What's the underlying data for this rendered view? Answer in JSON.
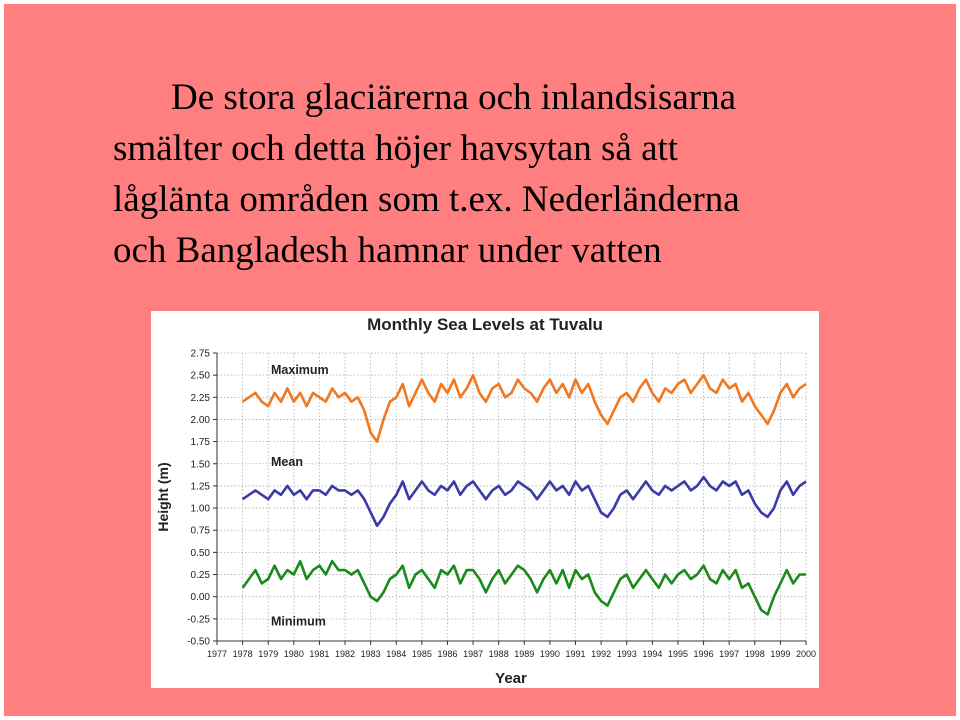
{
  "slide": {
    "text_lines": [
      "De stora glaciärerna och inlandsisarna",
      "smälter och detta höjer havsytan så att",
      "låglänta områden som t.ex. Nederländerna",
      "och Bangladesh hamnar under vatten"
    ]
  },
  "colors": {
    "slide_background": "#ff7f80",
    "maximum": "#f07820",
    "mean": "#3a3aa8",
    "minimum": "#1a8a1a",
    "grid": "#b0b0b0"
  },
  "chart_data": {
    "type": "line",
    "title": "Monthly Sea Levels at Tuvalu",
    "xlabel": "Year",
    "ylabel": "Height (m)",
    "xlim": [
      1977,
      2000
    ],
    "ylim": [
      -0.5,
      2.75
    ],
    "x_ticks": [
      "1977",
      "1978",
      "1979",
      "1980",
      "1981",
      "1982",
      "1983",
      "1984",
      "1985",
      "1986",
      "1987",
      "1988",
      "1989",
      "1990",
      "1991",
      "1992",
      "1993",
      "1994",
      "1995",
      "1996",
      "1997",
      "1998",
      "1999",
      "2000"
    ],
    "y_ticks": [
      "-0.50",
      "-0.25",
      "0.00",
      "0.25",
      "0.50",
      "0.75",
      "1.00",
      "1.25",
      "1.50",
      "1.75",
      "2.00",
      "2.25",
      "2.50",
      "2.75"
    ],
    "grid": true,
    "annotations": [
      "Maximum",
      "Mean",
      "Minimum"
    ],
    "series": [
      {
        "name": "Maximum",
        "x": [
          1978.0,
          1978.25,
          1978.5,
          1978.75,
          1979.0,
          1979.25,
          1979.5,
          1979.75,
          1980.0,
          1980.25,
          1980.5,
          1980.75,
          1981.0,
          1981.25,
          1981.5,
          1981.75,
          1982.0,
          1982.25,
          1982.5,
          1982.75,
          1983.0,
          1983.25,
          1983.5,
          1983.75,
          1984.0,
          1984.25,
          1984.5,
          1984.75,
          1985.0,
          1985.25,
          1985.5,
          1985.75,
          1986.0,
          1986.25,
          1986.5,
          1986.75,
          1987.0,
          1987.25,
          1987.5,
          1987.75,
          1988.0,
          1988.25,
          1988.5,
          1988.75,
          1989.0,
          1989.25,
          1989.5,
          1989.75,
          1990.0,
          1990.25,
          1990.5,
          1990.75,
          1991.0,
          1991.25,
          1991.5,
          1991.75,
          1992.0,
          1992.25,
          1992.5,
          1992.75,
          1993.0,
          1993.25,
          1993.5,
          1993.75,
          1994.0,
          1994.25,
          1994.5,
          1994.75,
          1995.0,
          1995.25,
          1995.5,
          1995.75,
          1996.0,
          1996.25,
          1996.5,
          1996.75,
          1997.0,
          1997.25,
          1997.5,
          1997.75,
          1998.0,
          1998.25,
          1998.5,
          1998.75,
          1999.0,
          1999.25,
          1999.5,
          1999.75,
          2000.0
        ],
        "values": [
          2.2,
          2.25,
          2.3,
          2.2,
          2.15,
          2.3,
          2.2,
          2.35,
          2.2,
          2.3,
          2.15,
          2.3,
          2.25,
          2.2,
          2.35,
          2.25,
          2.3,
          2.2,
          2.25,
          2.1,
          1.85,
          1.75,
          2.0,
          2.2,
          2.25,
          2.4,
          2.15,
          2.3,
          2.45,
          2.3,
          2.2,
          2.4,
          2.3,
          2.45,
          2.25,
          2.35,
          2.5,
          2.3,
          2.2,
          2.35,
          2.4,
          2.25,
          2.3,
          2.45,
          2.35,
          2.3,
          2.2,
          2.35,
          2.45,
          2.3,
          2.4,
          2.25,
          2.45,
          2.3,
          2.4,
          2.2,
          2.05,
          1.95,
          2.1,
          2.25,
          2.3,
          2.2,
          2.35,
          2.45,
          2.3,
          2.2,
          2.35,
          2.3,
          2.4,
          2.45,
          2.3,
          2.4,
          2.5,
          2.35,
          2.3,
          2.45,
          2.35,
          2.4,
          2.2,
          2.3,
          2.15,
          2.05,
          1.95,
          2.1,
          2.3,
          2.4,
          2.25,
          2.35,
          2.4
        ]
      },
      {
        "name": "Mean",
        "x": [
          1978.0,
          1978.25,
          1978.5,
          1978.75,
          1979.0,
          1979.25,
          1979.5,
          1979.75,
          1980.0,
          1980.25,
          1980.5,
          1980.75,
          1981.0,
          1981.25,
          1981.5,
          1981.75,
          1982.0,
          1982.25,
          1982.5,
          1982.75,
          1983.0,
          1983.25,
          1983.5,
          1983.75,
          1984.0,
          1984.25,
          1984.5,
          1984.75,
          1985.0,
          1985.25,
          1985.5,
          1985.75,
          1986.0,
          1986.25,
          1986.5,
          1986.75,
          1987.0,
          1987.25,
          1987.5,
          1987.75,
          1988.0,
          1988.25,
          1988.5,
          1988.75,
          1989.0,
          1989.25,
          1989.5,
          1989.75,
          1990.0,
          1990.25,
          1990.5,
          1990.75,
          1991.0,
          1991.25,
          1991.5,
          1991.75,
          1992.0,
          1992.25,
          1992.5,
          1992.75,
          1993.0,
          1993.25,
          1993.5,
          1993.75,
          1994.0,
          1994.25,
          1994.5,
          1994.75,
          1995.0,
          1995.25,
          1995.5,
          1995.75,
          1996.0,
          1996.25,
          1996.5,
          1996.75,
          1997.0,
          1997.25,
          1997.5,
          1997.75,
          1998.0,
          1998.25,
          1998.5,
          1998.75,
          1999.0,
          1999.25,
          1999.5,
          1999.75,
          2000.0
        ],
        "values": [
          1.1,
          1.15,
          1.2,
          1.15,
          1.1,
          1.2,
          1.15,
          1.25,
          1.15,
          1.2,
          1.1,
          1.2,
          1.2,
          1.15,
          1.25,
          1.2,
          1.2,
          1.15,
          1.2,
          1.1,
          0.95,
          0.8,
          0.9,
          1.05,
          1.15,
          1.3,
          1.1,
          1.2,
          1.3,
          1.2,
          1.15,
          1.25,
          1.2,
          1.3,
          1.15,
          1.25,
          1.3,
          1.2,
          1.1,
          1.2,
          1.25,
          1.15,
          1.2,
          1.3,
          1.25,
          1.2,
          1.1,
          1.2,
          1.3,
          1.2,
          1.25,
          1.15,
          1.3,
          1.2,
          1.25,
          1.1,
          0.95,
          0.9,
          1.0,
          1.15,
          1.2,
          1.1,
          1.2,
          1.3,
          1.2,
          1.15,
          1.25,
          1.2,
          1.25,
          1.3,
          1.2,
          1.25,
          1.35,
          1.25,
          1.2,
          1.3,
          1.25,
          1.3,
          1.15,
          1.2,
          1.05,
          0.95,
          0.9,
          1.0,
          1.2,
          1.3,
          1.15,
          1.25,
          1.3
        ]
      },
      {
        "name": "Minimum",
        "x": [
          1978.0,
          1978.25,
          1978.5,
          1978.75,
          1979.0,
          1979.25,
          1979.5,
          1979.75,
          1980.0,
          1980.25,
          1980.5,
          1980.75,
          1981.0,
          1981.25,
          1981.5,
          1981.75,
          1982.0,
          1982.25,
          1982.5,
          1982.75,
          1983.0,
          1983.25,
          1983.5,
          1983.75,
          1984.0,
          1984.25,
          1984.5,
          1984.75,
          1985.0,
          1985.25,
          1985.5,
          1985.75,
          1986.0,
          1986.25,
          1986.5,
          1986.75,
          1987.0,
          1987.25,
          1987.5,
          1987.75,
          1988.0,
          1988.25,
          1988.5,
          1988.75,
          1989.0,
          1989.25,
          1989.5,
          1989.75,
          1990.0,
          1990.25,
          1990.5,
          1990.75,
          1991.0,
          1991.25,
          1991.5,
          1991.75,
          1992.0,
          1992.25,
          1992.5,
          1992.75,
          1993.0,
          1993.25,
          1993.5,
          1993.75,
          1994.0,
          1994.25,
          1994.5,
          1994.75,
          1995.0,
          1995.25,
          1995.5,
          1995.75,
          1996.0,
          1996.25,
          1996.5,
          1996.75,
          1997.0,
          1997.25,
          1997.5,
          1997.75,
          1998.0,
          1998.25,
          1998.5,
          1998.75,
          1999.0,
          1999.25,
          1999.5,
          1999.75,
          2000.0
        ],
        "values": [
          0.1,
          0.2,
          0.3,
          0.15,
          0.2,
          0.35,
          0.2,
          0.3,
          0.25,
          0.4,
          0.2,
          0.3,
          0.35,
          0.25,
          0.4,
          0.3,
          0.3,
          0.25,
          0.3,
          0.15,
          0.0,
          -0.05,
          0.05,
          0.2,
          0.25,
          0.35,
          0.1,
          0.25,
          0.3,
          0.2,
          0.1,
          0.3,
          0.25,
          0.35,
          0.15,
          0.3,
          0.3,
          0.2,
          0.05,
          0.2,
          0.3,
          0.15,
          0.25,
          0.35,
          0.3,
          0.2,
          0.05,
          0.2,
          0.3,
          0.15,
          0.3,
          0.1,
          0.3,
          0.2,
          0.25,
          0.05,
          -0.05,
          -0.1,
          0.05,
          0.2,
          0.25,
          0.1,
          0.2,
          0.3,
          0.2,
          0.1,
          0.25,
          0.15,
          0.25,
          0.3,
          0.2,
          0.25,
          0.35,
          0.2,
          0.15,
          0.3,
          0.2,
          0.3,
          0.1,
          0.15,
          0.0,
          -0.15,
          -0.2,
          0.0,
          0.15,
          0.3,
          0.15,
          0.25,
          0.25
        ]
      }
    ]
  }
}
